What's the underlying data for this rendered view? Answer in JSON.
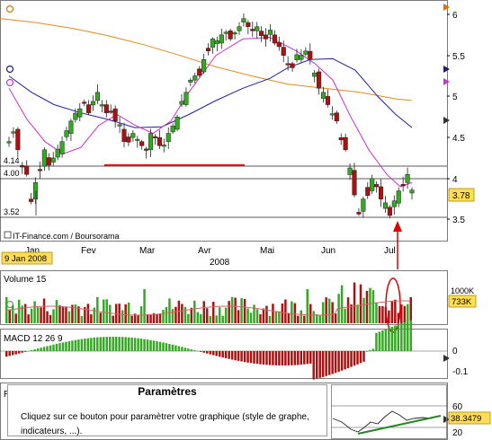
{
  "source_label": "IT-Finance.com / Boursorama",
  "date_label": "9 Jan 2008",
  "year_label": "2008",
  "months": [
    "Jan",
    "Fev",
    "Mar",
    "Avr",
    "Mai",
    "Jun",
    "Jul"
  ],
  "price": {
    "y_ticks": [
      "6",
      "5.5",
      "5",
      "4.5",
      "4",
      "3.5"
    ],
    "left_levels": [
      "4.14",
      "4.00",
      "3.52"
    ],
    "last_price": "3.78",
    "marker_colors": {
      "orange": "#e07000",
      "navy": "#1a1a8c",
      "magenta": "#cc33cc",
      "gray": "#555555"
    }
  },
  "volume": {
    "label": "Volume 15",
    "scale_label": "1000K",
    "last_value": "733K"
  },
  "macd": {
    "label": "MACD 12 26 9",
    "ticks": [
      "0",
      "-0.1"
    ]
  },
  "rsi": {
    "label": "RS",
    "ticks": [
      "60",
      "20"
    ],
    "last_value": "38.3479"
  },
  "tooltip": {
    "title": "Paramètres",
    "line1": "Cliquez sur ce bouton pour paramètrer votre graphique (style de graphe,",
    "line2": "indicateurs, ...)."
  },
  "colors": {
    "bull": "#33aa22",
    "bear": "#aa1111",
    "ma_orange": "#e08a20",
    "ma_blue": "#2020a0",
    "ma_magenta": "#cc33cc",
    "support": "#ee0000",
    "annotation": "#dd0000",
    "trend": "#228822",
    "vol_avg": "#cc6666",
    "date_badge": "#ffdd55"
  },
  "chart_data": {
    "type": "candlestick",
    "title": "",
    "year": "2008",
    "x_months": [
      "Jan",
      "Fev",
      "Mar",
      "Avr",
      "Mai",
      "Jun",
      "Jul"
    ],
    "price_ylim": [
      3.2,
      6.1
    ],
    "price_ticks": [
      3.5,
      4.0,
      4.5,
      5.0,
      5.5,
      6.0
    ],
    "price_path": [
      4.45,
      4.6,
      4.35,
      4.15,
      4.05,
      3.75,
      3.95,
      4.15,
      4.35,
      4.2,
      4.25,
      4.3,
      4.45,
      4.55,
      4.7,
      4.75,
      4.85,
      4.9,
      4.8,
      4.95,
      5.05,
      4.9,
      4.8,
      4.85,
      4.7,
      4.6,
      4.45,
      4.5,
      4.55,
      4.45,
      4.4,
      4.35,
      4.55,
      4.5,
      4.4,
      4.45,
      4.55,
      4.6,
      4.75,
      4.9,
      5.05,
      5.2,
      5.25,
      5.3,
      5.45,
      5.6,
      5.7,
      5.65,
      5.75,
      5.8,
      5.7,
      5.8,
      5.85,
      5.9,
      5.85,
      5.8,
      5.85,
      5.75,
      5.7,
      5.75,
      5.65,
      5.6,
      5.5,
      5.4,
      5.35,
      5.45,
      5.5,
      5.55,
      5.45,
      5.3,
      5.1,
      5.0,
      4.9,
      4.8,
      4.7,
      4.5,
      4.35,
      4.1,
      3.8,
      3.6,
      3.75,
      3.85,
      4.0,
      3.9,
      3.75,
      3.65,
      3.55,
      3.7,
      3.85,
      3.95,
      4.05,
      3.85
    ],
    "ma_orange": [
      [
        0,
        5.95
      ],
      [
        40,
        5.9
      ],
      [
        80,
        5.83
      ],
      [
        120,
        5.74
      ],
      [
        160,
        5.63
      ],
      [
        200,
        5.5
      ],
      [
        240,
        5.36
      ],
      [
        280,
        5.25
      ],
      [
        320,
        5.15
      ],
      [
        360,
        5.1
      ],
      [
        400,
        5.05
      ],
      [
        440,
        4.97
      ],
      [
        458,
        4.95
      ]
    ],
    "ma_blue": [
      [
        10,
        5.25
      ],
      [
        35,
        5.05
      ],
      [
        60,
        4.9
      ],
      [
        90,
        4.8
      ],
      [
        120,
        4.72
      ],
      [
        150,
        4.62
      ],
      [
        180,
        4.63
      ],
      [
        210,
        4.78
      ],
      [
        240,
        4.95
      ],
      [
        270,
        5.1
      ],
      [
        300,
        5.22
      ],
      [
        320,
        5.35
      ],
      [
        345,
        5.45
      ],
      [
        370,
        5.46
      ],
      [
        395,
        5.32
      ],
      [
        420,
        5.0
      ],
      [
        440,
        4.78
      ],
      [
        458,
        4.62
      ]
    ],
    "ma_magenta": [
      [
        10,
        5.1
      ],
      [
        30,
        4.72
      ],
      [
        50,
        4.45
      ],
      [
        70,
        4.3
      ],
      [
        90,
        4.38
      ],
      [
        110,
        4.65
      ],
      [
        130,
        4.78
      ],
      [
        150,
        4.65
      ],
      [
        170,
        4.55
      ],
      [
        190,
        4.7
      ],
      [
        210,
        5.05
      ],
      [
        240,
        5.5
      ],
      [
        270,
        5.7
      ],
      [
        300,
        5.72
      ],
      [
        330,
        5.55
      ],
      [
        350,
        5.4
      ],
      [
        370,
        5.2
      ],
      [
        390,
        4.75
      ],
      [
        410,
        4.35
      ],
      [
        430,
        4.05
      ],
      [
        445,
        3.9
      ],
      [
        458,
        3.95
      ]
    ],
    "support_level": 4.17,
    "volume_ticks": [
      "1000K"
    ],
    "macd_ticks": [
      0,
      -0.1
    ],
    "rsi_ticks": [
      60,
      20
    ],
    "rsi_last": 38.3479,
    "last_price": 3.78
  }
}
